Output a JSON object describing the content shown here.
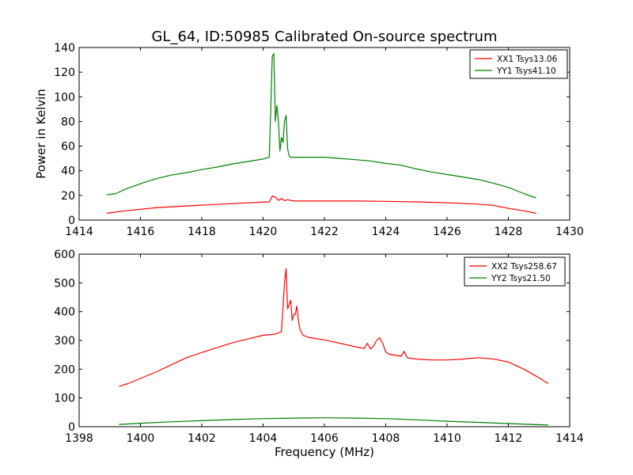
{
  "chart_data": [
    {
      "type": "line",
      "title": "GL_64, ID:50985 Calibrated On-source spectrum",
      "xlabel": "",
      "ylabel": "Power in Kelvin",
      "xlim": [
        1414,
        1430
      ],
      "ylim": [
        0,
        140
      ],
      "xticks": [
        1414,
        1416,
        1418,
        1420,
        1422,
        1424,
        1426,
        1428,
        1430
      ],
      "yticks": [
        0,
        20,
        40,
        60,
        80,
        100,
        120,
        140
      ],
      "grid": false,
      "legend": "top-right",
      "series": [
        {
          "name": "XX1 Tsys13.06",
          "color": "#ff0000",
          "x": [
            1414.9,
            1415.5,
            1416.5,
            1417.5,
            1418.5,
            1419.5,
            1420.2,
            1420.3,
            1420.4,
            1420.5,
            1420.6,
            1420.7,
            1420.8,
            1421.0,
            1422.0,
            1423.0,
            1424.0,
            1425.0,
            1426.0,
            1427.0,
            1427.5,
            1428.0,
            1428.5,
            1428.9
          ],
          "y": [
            5.5,
            7.5,
            10,
            11.5,
            12.7,
            14,
            14.8,
            19.5,
            18.5,
            16,
            17.5,
            15.8,
            16.5,
            15.5,
            15.5,
            15.5,
            15.2,
            14.8,
            14,
            13,
            12,
            9.5,
            7.5,
            5.5
          ]
        },
        {
          "name": "YY1 Tsys41.10",
          "color": "#008000",
          "x": [
            1414.9,
            1415.2,
            1415.5,
            1416,
            1416.5,
            1417,
            1417.5,
            1418,
            1418.5,
            1419,
            1419.5,
            1420,
            1420.2,
            1420.25,
            1420.3,
            1420.35,
            1420.4,
            1420.45,
            1420.5,
            1420.55,
            1420.6,
            1420.65,
            1420.7,
            1420.75,
            1420.8,
            1420.85,
            1420.9,
            1421,
            1421.5,
            1422,
            1422.5,
            1423,
            1423.5,
            1424,
            1424.5,
            1425,
            1425.5,
            1426,
            1426.5,
            1427,
            1427.5,
            1428,
            1428.5,
            1428.9
          ],
          "y": [
            20.5,
            21.5,
            25,
            29.5,
            33.5,
            36.5,
            38.5,
            41,
            43,
            45.5,
            47.5,
            49.5,
            51,
            90,
            133,
            135,
            80,
            93,
            80,
            56,
            67,
            63,
            80,
            85,
            58,
            52,
            51,
            51,
            51,
            51,
            50,
            49,
            48,
            46,
            44.5,
            41.5,
            39,
            37,
            35,
            33,
            30,
            26.5,
            21.5,
            18
          ]
        }
      ]
    },
    {
      "type": "line",
      "title": "",
      "xlabel": "Frequency (MHz)",
      "ylabel": "",
      "xlim": [
        1398,
        1414
      ],
      "ylim": [
        0,
        600
      ],
      "xticks": [
        1398,
        1400,
        1402,
        1404,
        1406,
        1408,
        1410,
        1412,
        1414
      ],
      "yticks": [
        0,
        100,
        200,
        300,
        400,
        500,
        600
      ],
      "grid": false,
      "legend": "top-right",
      "series": [
        {
          "name": "XX2 Tsys258.67",
          "color": "#ff0000",
          "x": [
            1399.3,
            1399.6,
            1400,
            1400.5,
            1401,
            1401.5,
            1402,
            1402.5,
            1403,
            1403.5,
            1404,
            1404.4,
            1404.6,
            1404.7,
            1404.75,
            1404.8,
            1404.9,
            1404.95,
            1405.0,
            1405.05,
            1405.1,
            1405.15,
            1405.2,
            1405.3,
            1405.5,
            1406,
            1406.5,
            1407,
            1407.3,
            1407.4,
            1407.5,
            1407.6,
            1407.7,
            1407.8,
            1407.9,
            1408.0,
            1408.1,
            1408.5,
            1408.6,
            1408.7,
            1409,
            1409.5,
            1410,
            1410.5,
            1411,
            1411.5,
            1412,
            1412.5,
            1413,
            1413.3
          ],
          "y": [
            140,
            150,
            168,
            190,
            215,
            240,
            258,
            275,
            292,
            305,
            318,
            322,
            330,
            500,
            550,
            410,
            440,
            370,
            390,
            390,
            420,
            370,
            340,
            318,
            310,
            302,
            290,
            278,
            272,
            290,
            270,
            280,
            300,
            310,
            290,
            260,
            252,
            245,
            262,
            240,
            235,
            232,
            232,
            235,
            240,
            236,
            225,
            200,
            170,
            150
          ]
        },
        {
          "name": "YY2 Tsys21.50",
          "color": "#008000",
          "x": [
            1399.3,
            1400,
            1401,
            1402,
            1403,
            1404,
            1405,
            1406,
            1407,
            1408,
            1409,
            1410,
            1411,
            1412,
            1413,
            1413.3
          ],
          "y": [
            8,
            12,
            17,
            21,
            25,
            28,
            30,
            31,
            30,
            28,
            24,
            19,
            15,
            11,
            7,
            6
          ]
        }
      ]
    }
  ]
}
